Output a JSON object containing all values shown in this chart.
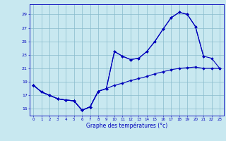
{
  "xlabel": "Graphe des températures (°c)",
  "background_color": "#c8e8f0",
  "grid_color": "#88bbcc",
  "line_color": "#0000bb",
  "hours": [
    0,
    1,
    2,
    3,
    4,
    5,
    6,
    7,
    8,
    9,
    10,
    11,
    12,
    13,
    14,
    15,
    16,
    17,
    18,
    19,
    20,
    21,
    22,
    23
  ],
  "line_upper": [
    18.5,
    17.5,
    17.0,
    16.5,
    16.3,
    16.2,
    14.8,
    15.3,
    17.6,
    null,
    null,
    null,
    null,
    null,
    null,
    null,
    null,
    null,
    null,
    null,
    null,
    null,
    null,
    null
  ],
  "line_mid": [
    18.5,
    17.5,
    17.0,
    16.5,
    16.3,
    16.2,
    14.8,
    15.3,
    17.6,
    18.0,
    23.5,
    22.8,
    22.3,
    22.5,
    23.5,
    25.0,
    26.8,
    28.5,
    29.3,
    29.0,
    27.2,
    22.8,
    null,
    null
  ],
  "line_full": [
    18.5,
    17.5,
    17.0,
    16.5,
    16.3,
    16.2,
    14.8,
    15.3,
    17.6,
    18.0,
    23.5,
    22.8,
    22.3,
    22.5,
    23.5,
    25.0,
    26.8,
    28.5,
    29.3,
    29.0,
    27.2,
    22.8,
    22.5,
    21.0
  ],
  "line_low": [
    18.5,
    17.5,
    17.0,
    16.5,
    16.3,
    16.2,
    14.8,
    15.3,
    17.6,
    18.0,
    18.5,
    18.8,
    19.2,
    19.5,
    19.8,
    20.2,
    20.5,
    20.8,
    21.0,
    21.1,
    21.2,
    21.0,
    21.0,
    21.0
  ],
  "ylim": [
    14.0,
    30.5
  ],
  "yticks": [
    15,
    17,
    19,
    21,
    23,
    25,
    27,
    29
  ],
  "xlim": [
    -0.5,
    23.5
  ]
}
